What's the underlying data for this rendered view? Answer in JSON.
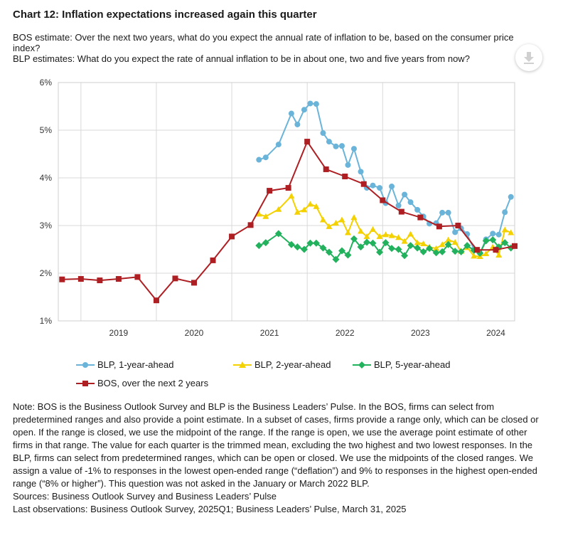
{
  "title": "Chart 12: Inflation expectations increased again this quarter",
  "subtitle_lines": [
    "BOS estimate: Over the next two years, what do you expect the annual rate of inflation to be, based on the consumer price index?",
    "BLP estimates: What do you expect the rate of annual inflation to be in about one, two and five years from now?"
  ],
  "download_icon": "download-arrow-icon",
  "chart_data": {
    "type": "line",
    "xlabel": "",
    "ylabel": "",
    "x_ticks": [
      "2019",
      "2020",
      "2021",
      "2022",
      "2023",
      "2024"
    ],
    "y_ticks": [
      "1%",
      "2%",
      "3%",
      "4%",
      "5%",
      "6%"
    ],
    "xlim": [
      2018.7,
      2024.75
    ],
    "ylim": [
      1,
      6
    ],
    "grid": true,
    "legend_position": "bottom",
    "series": [
      {
        "name": "BLP, 1-year-ahead",
        "color": "#6bb4d9",
        "marker": "circle",
        "points": [
          [
            2021.36,
            4.38
          ],
          [
            2021.45,
            4.43
          ],
          [
            2021.62,
            4.7
          ],
          [
            2021.79,
            5.35
          ],
          [
            2021.87,
            5.12
          ],
          [
            2021.96,
            5.43
          ],
          [
            2022.04,
            5.56
          ],
          [
            2022.12,
            5.55
          ],
          [
            2022.21,
            4.94
          ],
          [
            2022.29,
            4.76
          ],
          [
            2022.38,
            4.66
          ],
          [
            2022.46,
            4.67
          ],
          [
            2022.54,
            4.27
          ],
          [
            2022.62,
            4.61
          ],
          [
            2022.71,
            4.13
          ],
          [
            2022.79,
            3.79
          ],
          [
            2022.87,
            3.84
          ],
          [
            2022.96,
            3.79
          ],
          [
            2023.04,
            3.47
          ],
          [
            2023.12,
            3.82
          ],
          [
            2023.21,
            3.42
          ],
          [
            2023.29,
            3.65
          ],
          [
            2023.37,
            3.49
          ],
          [
            2023.46,
            3.33
          ],
          [
            2023.54,
            3.19
          ],
          [
            2023.62,
            3.04
          ],
          [
            2023.71,
            3.05
          ],
          [
            2023.79,
            3.27
          ],
          [
            2023.87,
            3.27
          ],
          [
            2023.96,
            2.86
          ],
          [
            2024.04,
            2.94
          ],
          [
            2024.12,
            2.82
          ],
          [
            2024.21,
            2.5
          ],
          [
            2024.29,
            2.42
          ],
          [
            2024.37,
            2.71
          ],
          [
            2024.46,
            2.83
          ],
          [
            2024.54,
            2.81
          ],
          [
            2024.62,
            3.28
          ],
          [
            2024.7,
            3.6
          ]
        ]
      },
      {
        "name": "BLP, 2-year-ahead",
        "color": "#f4d100",
        "marker": "triangle",
        "points": [
          [
            2021.36,
            3.24
          ],
          [
            2021.45,
            3.19
          ],
          [
            2021.62,
            3.34
          ],
          [
            2021.79,
            3.62
          ],
          [
            2021.87,
            3.28
          ],
          [
            2021.96,
            3.33
          ],
          [
            2022.04,
            3.45
          ],
          [
            2022.12,
            3.4
          ],
          [
            2022.21,
            3.12
          ],
          [
            2022.29,
            2.98
          ],
          [
            2022.38,
            3.05
          ],
          [
            2022.46,
            3.12
          ],
          [
            2022.54,
            2.85
          ],
          [
            2022.62,
            3.17
          ],
          [
            2022.71,
            2.88
          ],
          [
            2022.79,
            2.77
          ],
          [
            2022.87,
            2.92
          ],
          [
            2022.96,
            2.77
          ],
          [
            2023.04,
            2.81
          ],
          [
            2023.12,
            2.79
          ],
          [
            2023.21,
            2.75
          ],
          [
            2023.29,
            2.67
          ],
          [
            2023.37,
            2.82
          ],
          [
            2023.46,
            2.64
          ],
          [
            2023.54,
            2.62
          ],
          [
            2023.62,
            2.55
          ],
          [
            2023.71,
            2.52
          ],
          [
            2023.79,
            2.6
          ],
          [
            2023.87,
            2.7
          ],
          [
            2023.96,
            2.65
          ],
          [
            2024.04,
            2.46
          ],
          [
            2024.12,
            2.54
          ],
          [
            2024.21,
            2.36
          ],
          [
            2024.29,
            2.35
          ],
          [
            2024.37,
            2.41
          ],
          [
            2024.46,
            2.55
          ],
          [
            2024.54,
            2.38
          ],
          [
            2024.62,
            2.91
          ],
          [
            2024.7,
            2.85
          ]
        ]
      },
      {
        "name": "BLP, 5-year-ahead",
        "color": "#22b15d",
        "marker": "diamond",
        "points": [
          [
            2021.36,
            2.58
          ],
          [
            2021.45,
            2.64
          ],
          [
            2021.62,
            2.83
          ],
          [
            2021.79,
            2.6
          ],
          [
            2021.87,
            2.55
          ],
          [
            2021.96,
            2.5
          ],
          [
            2022.04,
            2.63
          ],
          [
            2022.12,
            2.63
          ],
          [
            2022.21,
            2.53
          ],
          [
            2022.29,
            2.44
          ],
          [
            2022.38,
            2.29
          ],
          [
            2022.46,
            2.47
          ],
          [
            2022.54,
            2.38
          ],
          [
            2022.62,
            2.72
          ],
          [
            2022.71,
            2.55
          ],
          [
            2022.79,
            2.65
          ],
          [
            2022.87,
            2.63
          ],
          [
            2022.96,
            2.44
          ],
          [
            2023.04,
            2.64
          ],
          [
            2023.12,
            2.52
          ],
          [
            2023.21,
            2.5
          ],
          [
            2023.29,
            2.37
          ],
          [
            2023.37,
            2.58
          ],
          [
            2023.46,
            2.53
          ],
          [
            2023.54,
            2.45
          ],
          [
            2023.62,
            2.52
          ],
          [
            2023.71,
            2.43
          ],
          [
            2023.79,
            2.45
          ],
          [
            2023.87,
            2.6
          ],
          [
            2023.96,
            2.46
          ],
          [
            2024.04,
            2.45
          ],
          [
            2024.12,
            2.58
          ],
          [
            2024.21,
            2.48
          ],
          [
            2024.29,
            2.42
          ],
          [
            2024.37,
            2.68
          ],
          [
            2024.46,
            2.7
          ],
          [
            2024.54,
            2.55
          ],
          [
            2024.62,
            2.64
          ],
          [
            2024.7,
            2.53
          ]
        ]
      },
      {
        "name": "BOS, over the next 2 years",
        "color": "#ae1f23",
        "marker": "square",
        "points": [
          [
            2018.75,
            1.87
          ],
          [
            2019.0,
            1.88
          ],
          [
            2019.25,
            1.85
          ],
          [
            2019.5,
            1.88
          ],
          [
            2019.75,
            1.92
          ],
          [
            2020.0,
            1.43
          ],
          [
            2020.25,
            1.89
          ],
          [
            2020.5,
            1.8
          ],
          [
            2020.75,
            2.27
          ],
          [
            2021.0,
            2.77
          ],
          [
            2021.25,
            3.01
          ],
          [
            2021.5,
            3.73
          ],
          [
            2021.75,
            3.79
          ],
          [
            2022.0,
            4.76
          ],
          [
            2022.25,
            4.18
          ],
          [
            2022.5,
            4.03
          ],
          [
            2022.75,
            3.87
          ],
          [
            2023.0,
            3.53
          ],
          [
            2023.25,
            3.29
          ],
          [
            2023.5,
            3.17
          ],
          [
            2023.75,
            2.98
          ],
          [
            2024.0,
            3.0
          ],
          [
            2024.25,
            2.49
          ],
          [
            2024.5,
            2.49
          ],
          [
            2024.75,
            2.57
          ]
        ]
      }
    ]
  },
  "legend": [
    {
      "label": "BLP, 1-year-ahead"
    },
    {
      "label": "BLP, 2-year-ahead"
    },
    {
      "label": "BLP, 5-year-ahead"
    },
    {
      "label": "BOS, over the next 2 years"
    }
  ],
  "notes": {
    "note": "Note: BOS is the Business Outlook Survey and BLP is the Business Leaders’ Pulse. In the BOS, firms can select from predetermined ranges and also provide a point estimate. In a subset of cases, firms provide a range only, which can be closed or open. If the range is closed, we use the midpoint of the range. If the range is open, we use the average point estimate of other firms in that range. The value for each quarter is the trimmed mean, excluding the two highest and two lowest responses. In the BLP, firms can select from predetermined ranges, which can be open or closed. We use the midpoints of the closed ranges. We assign a value of -1% to responses in the lowest open-ended range (“deflation”) and 9% to responses in the highest open-ended range (“8% or higher”). This question was not asked in the January or March 2022 BLP.",
    "sources": "Sources: Business Outlook Survey and Business Leaders’ Pulse",
    "last_obs": "Last observations: Business Outlook Survey, 2025Q1; Business Leaders’ Pulse, March 31, 2025"
  }
}
